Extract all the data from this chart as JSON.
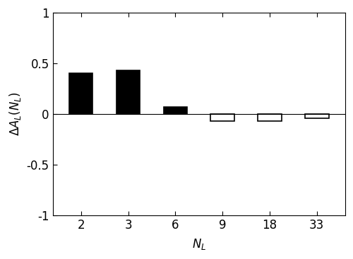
{
  "categories": [
    "2",
    "3",
    "6",
    "9",
    "18",
    "33"
  ],
  "values": [
    0.405,
    0.43,
    0.07,
    -0.07,
    -0.07,
    -0.045
  ],
  "bar_colors": [
    "black",
    "black",
    "black",
    "white",
    "white",
    "white"
  ],
  "bar_edgecolors": [
    "black",
    "black",
    "black",
    "black",
    "black",
    "black"
  ],
  "ylabel": "$\\Delta A_L(N_L)$",
  "xlabel": "$N_L$",
  "ylim": [
    -1,
    1
  ],
  "yticks": [
    -1,
    -0.5,
    0,
    0.5,
    1
  ],
  "ytick_labels": [
    "-1",
    "-0.5",
    "0",
    "0.5",
    "1"
  ],
  "title": "",
  "bar_width": 0.5,
  "background_color": "#ffffff",
  "linewidth": 1.2
}
